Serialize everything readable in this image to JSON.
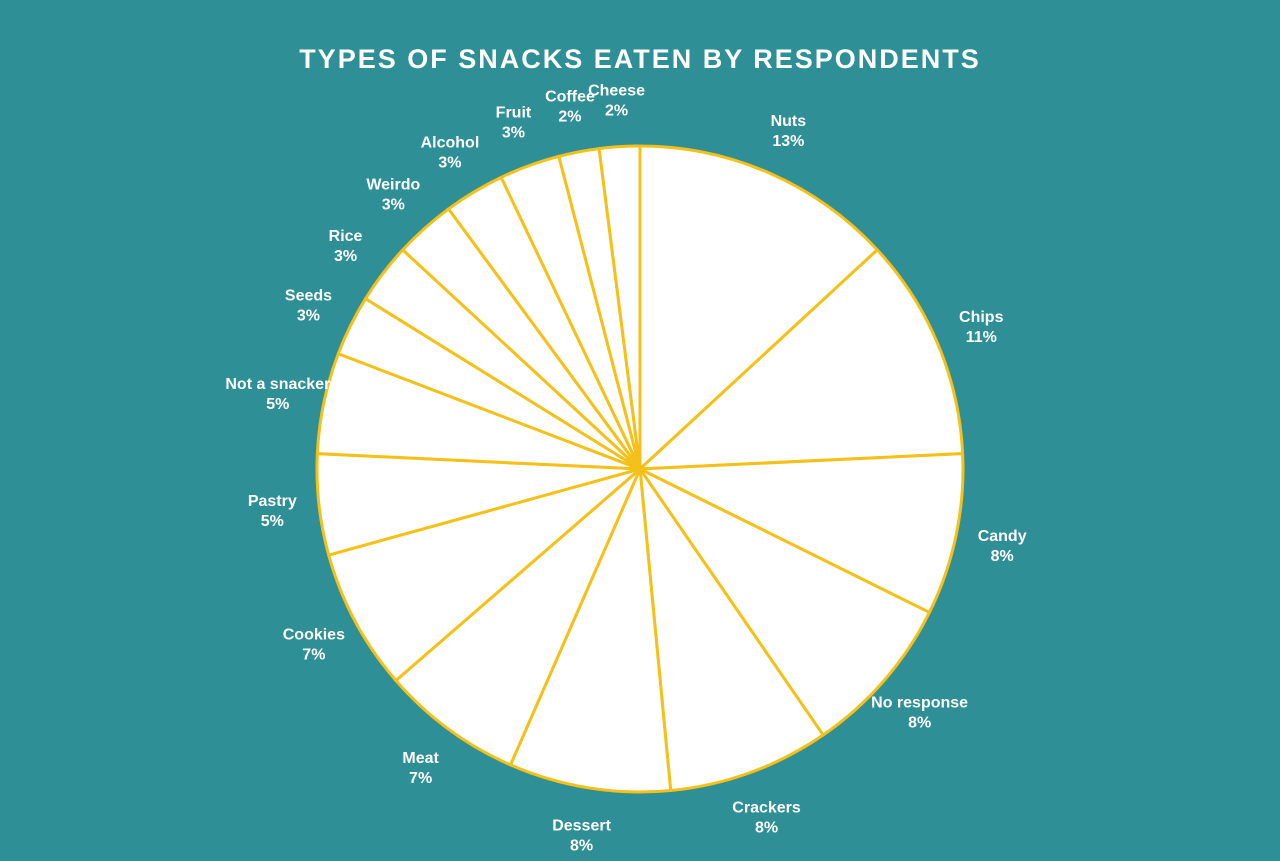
{
  "chart_data": {
    "type": "pie",
    "title": "TYPES OF SNACKS EATEN BY RESPONDENTS",
    "slices": [
      {
        "label": "Nuts",
        "pct_label": "13%",
        "value": 13
      },
      {
        "label": "Chips",
        "pct_label": "11%",
        "value": 11
      },
      {
        "label": "Candy",
        "pct_label": "8%",
        "value": 8
      },
      {
        "label": "No response",
        "pct_label": "8%",
        "value": 8
      },
      {
        "label": "Crackers",
        "pct_label": "8%",
        "value": 8
      },
      {
        "label": "Dessert",
        "pct_label": "8%",
        "value": 8
      },
      {
        "label": "Meat",
        "pct_label": "7%",
        "value": 7
      },
      {
        "label": "Cookies",
        "pct_label": "7%",
        "value": 7
      },
      {
        "label": "Pastry",
        "pct_label": "5%",
        "value": 5
      },
      {
        "label": "Not a snacker",
        "pct_label": "5%",
        "value": 5
      },
      {
        "label": "Seeds",
        "pct_label": "3%",
        "value": 3
      },
      {
        "label": "Rice",
        "pct_label": "3%",
        "value": 3
      },
      {
        "label": "Weirdo",
        "pct_label": "3%",
        "value": 3
      },
      {
        "label": "Alcohol",
        "pct_label": "3%",
        "value": 3
      },
      {
        "label": "Fruit",
        "pct_label": "3%",
        "value": 3
      },
      {
        "label": "Coffee",
        "pct_label": "2%",
        "value": 2
      },
      {
        "label": "Cheese",
        "pct_label": "2%",
        "value": 2
      }
    ],
    "colors": {
      "background": "#2e8f96",
      "slice_fill": "#ffffff",
      "slice_stroke": "#f5c018",
      "text": "#ffffff"
    }
  }
}
